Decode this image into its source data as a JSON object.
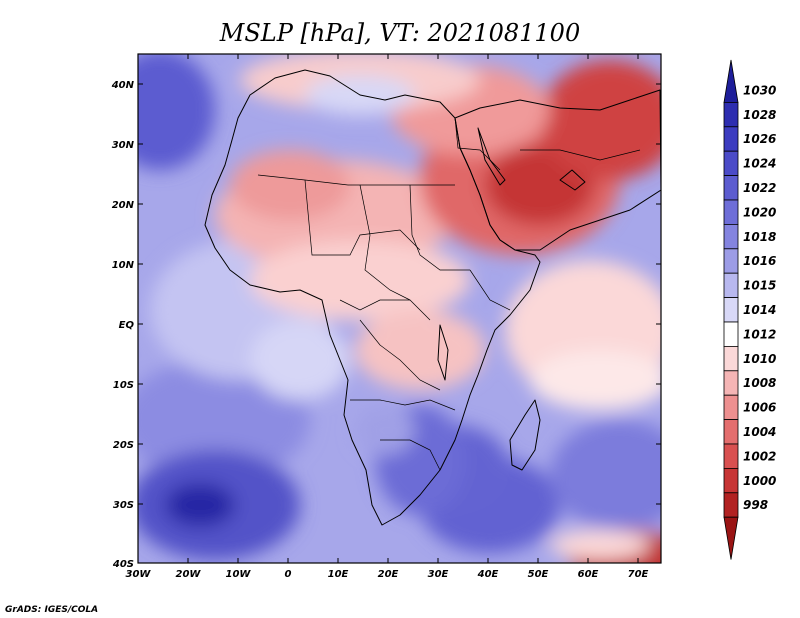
{
  "title": "MSLP [hPa], VT: 2021081100",
  "credit": "GrADS: IGES/COLA",
  "y_ticks": [
    "40N",
    "30N",
    "20N",
    "10N",
    "EQ",
    "10S",
    "20S",
    "30S",
    "40S"
  ],
  "x_ticks": [
    "30W",
    "20W",
    "10W",
    "0",
    "10E",
    "20E",
    "30E",
    "40E",
    "50E",
    "60E",
    "70E"
  ],
  "colorbar": {
    "labels": [
      "1030",
      "1028",
      "1026",
      "1024",
      "1022",
      "1020",
      "1018",
      "1016",
      "1015",
      "1014",
      "1012",
      "1010",
      "1008",
      "1006",
      "1004",
      "1002",
      "1000",
      "998"
    ],
    "colors": [
      "#1e1e9a",
      "#2d2db0",
      "#3c3cc0",
      "#4b4bc8",
      "#5c5cd0",
      "#6e6ed8",
      "#8484e0",
      "#9c9ce6",
      "#b8b8ef",
      "#d8d8f7",
      "#ffffff",
      "#fbd8d8",
      "#f5b5b5",
      "#ee9090",
      "#e46e6e",
      "#d95050",
      "#c73535",
      "#b22222",
      "#9a1414"
    ]
  }
}
